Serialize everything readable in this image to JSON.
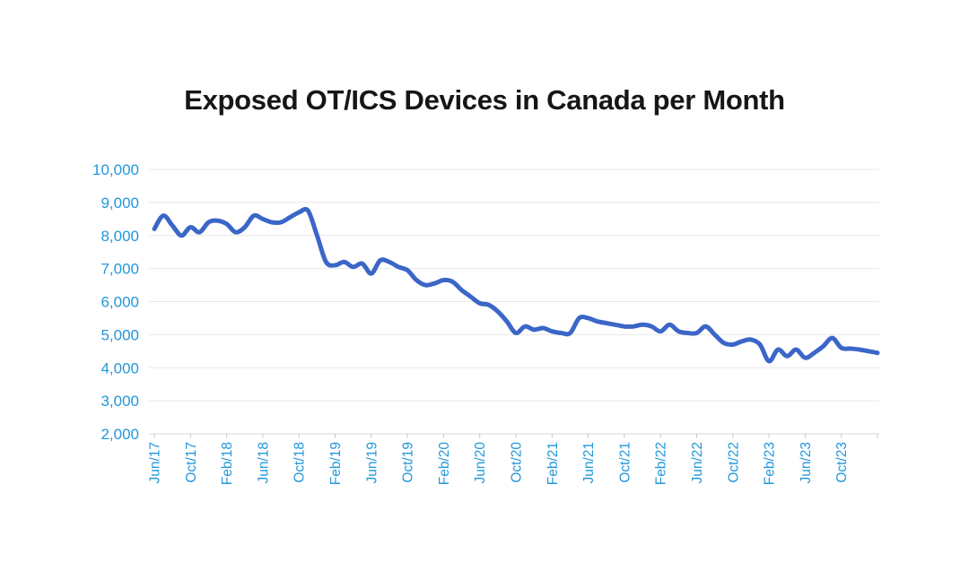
{
  "page": {
    "background": "#ffffff"
  },
  "chart_data": {
    "type": "line",
    "title": "Exposed OT/ICS Devices in Canada per Month",
    "legend": "none",
    "grid": "horizontal",
    "ylim": [
      2000,
      10000
    ],
    "y_ticks": [
      2000,
      3000,
      4000,
      5000,
      6000,
      7000,
      8000,
      9000,
      10000
    ],
    "y_tick_labels": [
      "2,000",
      "3,000",
      "4,000",
      "5,000",
      "6,000",
      "7,000",
      "8,000",
      "9,000",
      "10,000"
    ],
    "x_tick_every": 4,
    "x_tick_labels": [
      "Jun/17",
      "Oct/17",
      "Feb/18",
      "Jun/18",
      "Oct/18",
      "Feb/19",
      "Jun/19",
      "Oct/19",
      "Feb/20",
      "Jun/20",
      "Oct/20",
      "Feb/21",
      "Jun/21",
      "Oct/21",
      "Feb/22",
      "Jun/22",
      "Oct/22",
      "Feb/23",
      "Jun/23",
      "Oct/23"
    ],
    "x": [
      "Jun/17",
      "Jul/17",
      "Aug/17",
      "Sep/17",
      "Oct/17",
      "Nov/17",
      "Dec/17",
      "Jan/18",
      "Feb/18",
      "Mar/18",
      "Apr/18",
      "May/18",
      "Jun/18",
      "Jul/18",
      "Aug/18",
      "Sep/18",
      "Oct/18",
      "Nov/18",
      "Dec/18",
      "Jan/19",
      "Feb/19",
      "Mar/19",
      "Apr/19",
      "May/19",
      "Jun/19",
      "Jul/19",
      "Aug/19",
      "Sep/19",
      "Oct/19",
      "Nov/19",
      "Dec/19",
      "Jan/20",
      "Feb/20",
      "Mar/20",
      "Apr/20",
      "May/20",
      "Jun/20",
      "Jul/20",
      "Aug/20",
      "Sep/20",
      "Oct/20",
      "Nov/20",
      "Dec/20",
      "Jan/21",
      "Feb/21",
      "Mar/21",
      "Apr/21",
      "May/21",
      "Jun/21",
      "Jul/21",
      "Aug/21",
      "Sep/21",
      "Oct/21",
      "Nov/21",
      "Dec/21",
      "Jan/22",
      "Feb/22",
      "Mar/22",
      "Apr/22",
      "May/22",
      "Jun/22",
      "Jul/22",
      "Aug/22",
      "Sep/22",
      "Oct/22",
      "Nov/22",
      "Dec/22",
      "Jan/23",
      "Feb/23",
      "Mar/23",
      "Apr/23",
      "May/23",
      "Jun/23",
      "Jul/23",
      "Aug/23",
      "Sep/23",
      "Oct/23",
      "Nov/23",
      "Dec/23",
      "Jan/24",
      "Feb/24"
    ],
    "series": [
      {
        "name": "Exposed OT/ICS devices",
        "values": [
          8200,
          8600,
          8300,
          8000,
          8250,
          8100,
          8400,
          8450,
          8350,
          8100,
          8250,
          8600,
          8500,
          8400,
          8400,
          8550,
          8700,
          8750,
          8000,
          7200,
          7100,
          7200,
          7050,
          7150,
          6850,
          7250,
          7200,
          7050,
          6950,
          6650,
          6500,
          6550,
          6650,
          6600,
          6350,
          6150,
          5950,
          5900,
          5700,
          5400,
          5050,
          5250,
          5150,
          5200,
          5100,
          5050,
          5050,
          5500,
          5500,
          5400,
          5350,
          5300,
          5250,
          5250,
          5300,
          5250,
          5100,
          5300,
          5100,
          5050,
          5050,
          5250,
          5000,
          4750,
          4700,
          4800,
          4850,
          4700,
          4200,
          4550,
          4350,
          4550,
          4300,
          4450,
          4650,
          4900,
          4600,
          4580,
          4550,
          4500,
          4450
        ]
      }
    ],
    "colors": {
      "line": "#3b66c8",
      "axis_labels": "#2397da",
      "gridline": "#e8e8e8",
      "axis_line": "#d7d7d7",
      "tick": "#c9c9c9",
      "title": "#161616"
    }
  }
}
